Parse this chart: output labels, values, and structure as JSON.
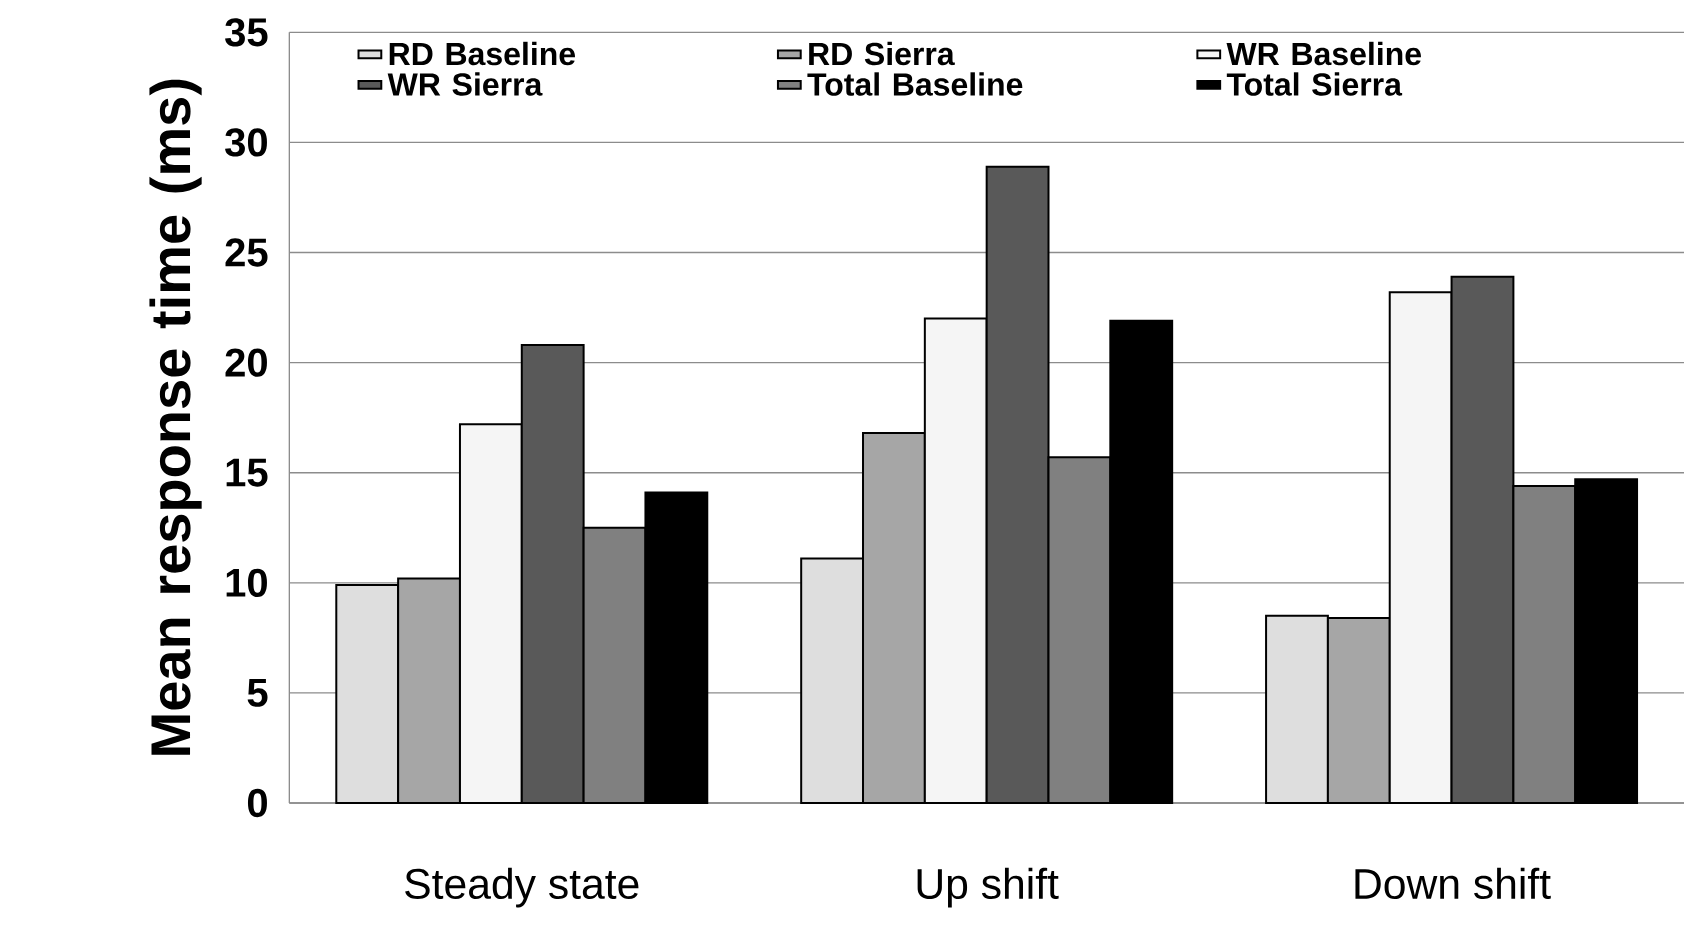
{
  "chart_data": {
    "type": "bar",
    "ylabel": "Mean response time (ms)",
    "categories": [
      "Steady state",
      "Up shift",
      "Down shift"
    ],
    "series": [
      {
        "name": "RD Baseline",
        "color": "#dedede",
        "values": [
          9.9,
          11.1,
          8.5
        ]
      },
      {
        "name": "RD Sierra",
        "color": "#a6a6a6",
        "values": [
          10.2,
          16.8,
          8.4
        ]
      },
      {
        "name": "WR Baseline",
        "color": "#f5f5f5",
        "values": [
          17.2,
          22.0,
          23.2
        ]
      },
      {
        "name": "WR Sierra",
        "color": "#595959",
        "values": [
          20.8,
          28.9,
          23.9
        ]
      },
      {
        "name": "Total Baseline",
        "color": "#808080",
        "values": [
          12.5,
          15.7,
          14.4
        ]
      },
      {
        "name": "Total Sierra",
        "color": "#000000",
        "values": [
          14.1,
          21.9,
          14.7
        ]
      }
    ],
    "ylim": [
      0,
      35
    ],
    "yticks": [
      0,
      5,
      10,
      15,
      20,
      25,
      30,
      35
    ],
    "grid": "y",
    "legend": "top"
  }
}
